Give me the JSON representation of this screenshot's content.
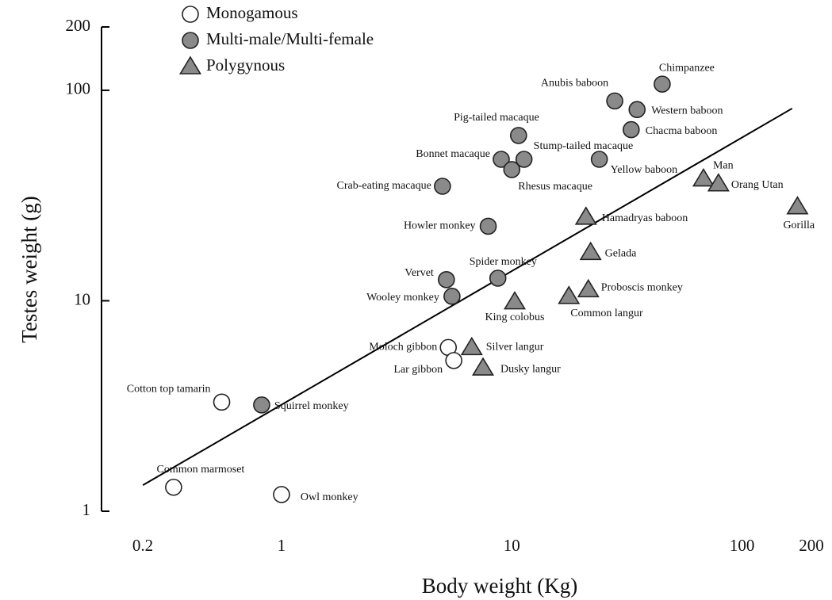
{
  "chart_data": {
    "type": "scatter",
    "x_label": "Body weight (Kg)",
    "y_label": "Testes weight (g)",
    "xscale": "log",
    "yscale": "log",
    "xlim": [
      0.2,
      200
    ],
    "ylim": [
      1,
      200
    ],
    "xticks": [
      0.2,
      1,
      10,
      100,
      200
    ],
    "yticks": [
      1,
      10,
      100,
      200
    ],
    "series": [
      {
        "name": "Monogamous",
        "marker": "circle",
        "color": "#ffffff",
        "labels": [
          "Cotton top tamarin",
          "Common marmoset",
          "Owl monkey",
          "Moloch gibbon",
          "Lar gibbon"
        ],
        "x": [
          0.55,
          0.34,
          1.0,
          5.3,
          5.6
        ],
        "values": [
          3.3,
          1.3,
          1.2,
          6.0,
          5.2
        ]
      },
      {
        "name": "Multi-male/Multi-female",
        "marker": "circle",
        "color": "#8a8a8a",
        "labels": [
          "Squirrel monkey",
          "Vervet",
          "Wooley monkey",
          "Spider monkey",
          "Howler monkey",
          "Crab-eating macaque",
          "Bonnet macaque",
          "Rhesus macaque",
          "Stump-tailed macaque",
          "Pig-tailed macaque",
          "Yellow baboon",
          "Chacma baboon",
          "Western baboon",
          "Anubis baboon",
          "Chimpanzee"
        ],
        "x": [
          0.82,
          5.2,
          5.5,
          8.7,
          7.9,
          5.0,
          9.0,
          10,
          11.3,
          10.7,
          24,
          33,
          35,
          28,
          45
        ],
        "values": [
          3.2,
          12.6,
          10.5,
          12.8,
          22.6,
          35,
          47,
          42,
          47,
          61,
          47,
          65,
          81,
          89,
          107
        ]
      },
      {
        "name": "Polygynous",
        "marker": "triangle",
        "color": "#8a8a8a",
        "labels": [
          "Hamadryas baboon",
          "Gelada",
          "Proboscis monkey",
          "Common langur",
          "King colobus",
          "Silver langur",
          "Dusky langur",
          "Man",
          "Orang Utan",
          "Gorilla"
        ],
        "x": [
          21,
          22,
          21.5,
          17.7,
          10.3,
          6.7,
          7.5,
          68,
          79,
          174
        ],
        "values": [
          25,
          17,
          11.3,
          10.5,
          9.9,
          6.0,
          4.8,
          38,
          36,
          28
        ]
      }
    ],
    "fit_line": {
      "x": [
        0.25,
        165
      ],
      "values": [
        1.33,
        82
      ],
      "color": "#000000"
    }
  }
}
